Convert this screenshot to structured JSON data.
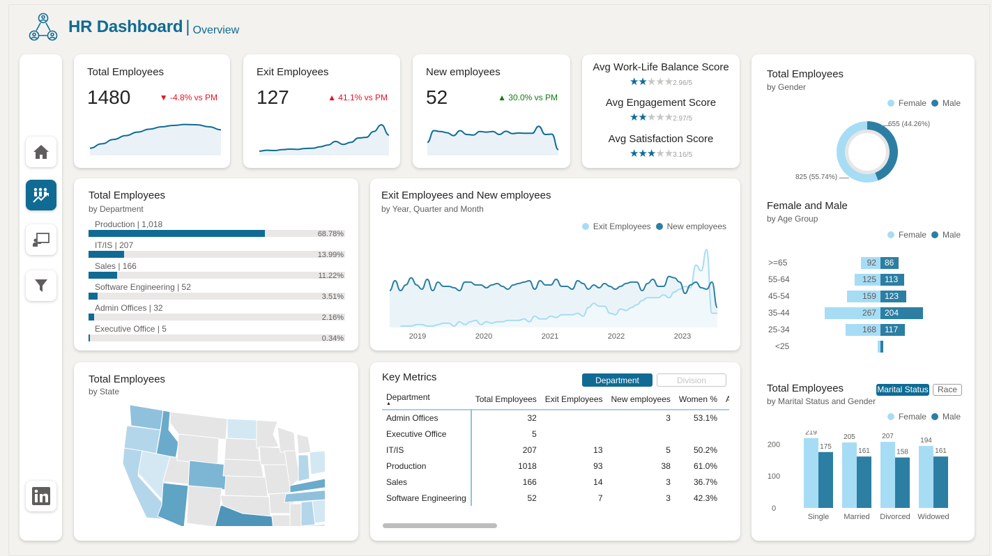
{
  "header": {
    "title": "HR Dashboard",
    "separator": "|",
    "subtitle": "Overview",
    "logo_icon": "people-network-icon"
  },
  "sidebar": {
    "items": [
      {
        "name": "home",
        "icon": "home-icon",
        "active": false
      },
      {
        "name": "overview",
        "icon": "team-growth-icon",
        "active": true
      },
      {
        "name": "training",
        "icon": "presentation-icon",
        "active": false
      },
      {
        "name": "filter",
        "icon": "filter-icon",
        "active": false
      },
      {
        "name": "linkedin",
        "icon": "linkedin-icon",
        "active": false
      }
    ]
  },
  "kpis": [
    {
      "title": "Total Employees",
      "value": "1480",
      "delta": "▼ -4.8% vs PM",
      "delta_color": "#e81123",
      "trend": [
        0.15,
        0.3,
        0.45,
        0.58,
        0.7,
        0.8,
        0.88,
        0.93,
        0.96,
        0.95,
        0.88,
        0.78
      ]
    },
    {
      "title": "Exit Employees",
      "value": "127",
      "delta": "▲ 41.1% vs PM",
      "delta_color": "#e81123",
      "trend": [
        0.05,
        0.08,
        0.07,
        0.1,
        0.12,
        0.11,
        0.14,
        0.15,
        0.2,
        0.26,
        0.38,
        0.28,
        0.35,
        0.5,
        0.52,
        0.72,
        0.95,
        0.6
      ]
    },
    {
      "title": "New employees",
      "value": "52",
      "delta": "▲ 30.0% vs PM",
      "delta_color": "#107c10",
      "trend": [
        0.35,
        0.75,
        0.72,
        0.68,
        0.58,
        0.75,
        0.62,
        0.6,
        0.72,
        0.7,
        0.72,
        0.62,
        0.73,
        0.65,
        0.67,
        0.66,
        0.66,
        0.9,
        0.62,
        0.63,
        0.1
      ]
    }
  ],
  "scores": [
    {
      "title": "Avg Work-Life Balance Score",
      "value": 2.96,
      "label": "2.96/5"
    },
    {
      "title": "Avg Engagement Score",
      "value": 2.97,
      "label": "2.97/5"
    },
    {
      "title": "Avg Satisfaction Score",
      "value": 3.16,
      "label": "3.16/5"
    }
  ],
  "colors": {
    "primary": "#0f6b94",
    "female": "#a7dcf5",
    "male": "#2c7fa3",
    "track": "#e9e8e7"
  },
  "department": {
    "title": "Total Employees",
    "subtitle": "by Department",
    "rows": [
      {
        "label": "Production | 1,018",
        "pct": 68.78,
        "pct_label": "68.78%"
      },
      {
        "label": "IT/IS | 207",
        "pct": 13.99,
        "pct_label": "13.99%"
      },
      {
        "label": "Sales | 166",
        "pct": 11.22,
        "pct_label": "11.22%"
      },
      {
        "label": "Software Engineering | 52",
        "pct": 3.51,
        "pct_label": "3.51%"
      },
      {
        "label": "Admin Offices | 32",
        "pct": 2.16,
        "pct_label": "2.16%"
      },
      {
        "label": "Executive Office | 5",
        "pct": 0.34,
        "pct_label": "0.34%"
      }
    ]
  },
  "trend": {
    "title": "Exit Employees and New employees",
    "subtitle": "by Year, Quarter and Month",
    "legend": [
      "Exit Employees",
      "New employees"
    ],
    "x_labels": [
      "2019",
      "2020",
      "2021",
      "2022",
      "2023"
    ]
  },
  "state_map": {
    "title": "Total Employees",
    "subtitle": "by State"
  },
  "key_metrics": {
    "title": "Key Metrics",
    "toggles": [
      {
        "label": "Department",
        "active": true
      },
      {
        "label": "Division",
        "active": false
      }
    ],
    "columns": [
      "Department",
      "Total Employees",
      "Exit Employees",
      "New employees",
      "Women %",
      "Avg S"
    ],
    "rows": [
      [
        "Admin Offices",
        "32",
        "",
        "3",
        "53.1%"
      ],
      [
        "Executive Office",
        "5",
        "",
        "",
        ""
      ],
      [
        "IT/IS",
        "207",
        "13",
        "5",
        "50.2%"
      ],
      [
        "Production",
        "1018",
        "93",
        "38",
        "61.0%"
      ],
      [
        "Sales",
        "166",
        "14",
        "3",
        "36.7%"
      ],
      [
        "Software Engineering",
        "52",
        "7",
        "3",
        "42.3%"
      ]
    ]
  },
  "gender": {
    "title": "Total Employees",
    "subtitle": "by Gender",
    "legend": [
      "Female",
      "Male"
    ],
    "female": 825,
    "male": 655,
    "female_label": "825 (55.74%)",
    "male_label": "655 (44.26%)"
  },
  "age": {
    "title": "Female and Male",
    "subtitle": "by Age Group",
    "legend": [
      "Female",
      "Male"
    ],
    "groups": [
      {
        "label": ">=65",
        "female": 92,
        "male": 86
      },
      {
        "label": "55-64",
        "female": 125,
        "male": 113
      },
      {
        "label": "45-54",
        "female": 159,
        "male": 123
      },
      {
        "label": "35-44",
        "female": 267,
        "male": 204
      },
      {
        "label": "25-34",
        "female": 168,
        "male": 117
      },
      {
        "label": "<25",
        "female": 8,
        "male": 5
      }
    ]
  },
  "marital": {
    "title": "Total Employees",
    "subtitle": "by Marital Status and Gender",
    "toggles": [
      {
        "label": "Marital Status",
        "active": true
      },
      {
        "label": "Race",
        "active": false
      }
    ],
    "legend": [
      "Female",
      "Male"
    ],
    "y_ticks": [
      "0",
      "100",
      "200"
    ]
  },
  "chart_data": [
    {
      "type": "bar",
      "title": "Total Employees by Marital Status and Gender",
      "categories": [
        "Single",
        "Married",
        "Divorced",
        "Widowed"
      ],
      "series": [
        {
          "name": "Female",
          "values": [
            219,
            205,
            207,
            194
          ]
        },
        {
          "name": "Male",
          "values": [
            175,
            161,
            158,
            161
          ]
        }
      ],
      "ylim": [
        0,
        240
      ],
      "legend": "top-right"
    },
    {
      "type": "bar",
      "title": "Female and Male by Age Group",
      "categories": [
        ">=65",
        "55-64",
        "45-54",
        "35-44",
        "25-34",
        "<25"
      ],
      "series": [
        {
          "name": "Female",
          "values": [
            92,
            125,
            159,
            267,
            168,
            8
          ]
        },
        {
          "name": "Male",
          "values": [
            86,
            113,
            123,
            204,
            117,
            5
          ]
        }
      ]
    },
    {
      "type": "pie",
      "title": "Total Employees by Gender",
      "categories": [
        "Female",
        "Male"
      ],
      "values": [
        825,
        655
      ]
    },
    {
      "type": "line",
      "title": "Exit Employees and New employees by Year, Quarter and Month",
      "x": [
        "2019",
        "2020",
        "2021",
        "2022",
        "2023"
      ],
      "series": [
        {
          "name": "New employees",
          "values": [
            26,
            33,
            26,
            30,
            35,
            30,
            27,
            34,
            26,
            32,
            29,
            29,
            28,
            26,
            32,
            32,
            30,
            30,
            28,
            30,
            31,
            29,
            27,
            30,
            31,
            32,
            33,
            27,
            33,
            30,
            30,
            34,
            29,
            29,
            27,
            33,
            31,
            27,
            30,
            28,
            31,
            29,
            27,
            29,
            31,
            32,
            32,
            26,
            31,
            34,
            29,
            29,
            36,
            35,
            32,
            24,
            30,
            32,
            28,
            27,
            32,
            14
          ]
        },
        {
          "name": "Exit Employees",
          "values": [
            0,
            0,
            1,
            1,
            1,
            2,
            2,
            1,
            1,
            2,
            3,
            3,
            1,
            4,
            2,
            4,
            5,
            2,
            4,
            3,
            4,
            4,
            5,
            5,
            5,
            6,
            4,
            8,
            6,
            6,
            8,
            7,
            9,
            9,
            9,
            10,
            8,
            14,
            17,
            15,
            15,
            10,
            9,
            13,
            12,
            14,
            16,
            19,
            21,
            21,
            21,
            23,
            21,
            25,
            27,
            29,
            28,
            44,
            40,
            55,
            10,
            10
          ]
        }
      ]
    }
  ]
}
